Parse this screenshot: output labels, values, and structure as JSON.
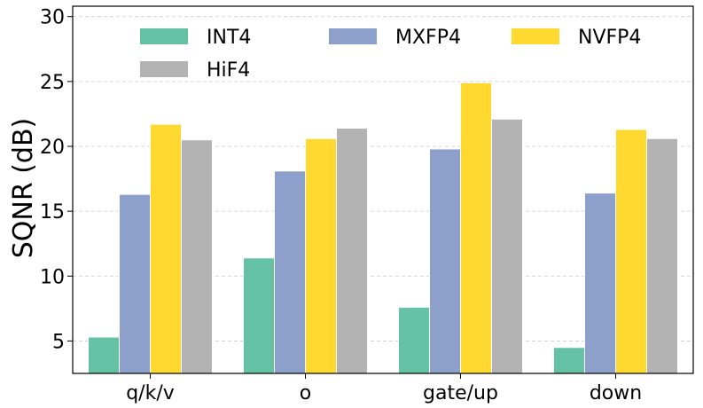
{
  "chart_data": {
    "type": "bar",
    "title": "",
    "xlabel": "",
    "ylabel": "SQNR (dB)",
    "ylim": [
      2.5,
      30.8
    ],
    "yticks": [
      5,
      10,
      15,
      20,
      25,
      30
    ],
    "grid": true,
    "legend_position": "top",
    "categories": [
      "q/k/v",
      "o",
      "gate/up",
      "down"
    ],
    "series": [
      {
        "name": "INT4",
        "color": "#66c2a5",
        "values": [
          5.3,
          11.4,
          7.6,
          4.5
        ]
      },
      {
        "name": "MXFP4",
        "color": "#8da0cb",
        "values": [
          16.3,
          18.1,
          19.8,
          16.4
        ]
      },
      {
        "name": "NVFP4",
        "color": "#ffd92f",
        "values": [
          21.7,
          20.6,
          24.9,
          21.3
        ]
      },
      {
        "name": "HiF4",
        "color": "#b3b3b3",
        "values": [
          20.5,
          21.4,
          22.1,
          20.6
        ]
      }
    ]
  }
}
